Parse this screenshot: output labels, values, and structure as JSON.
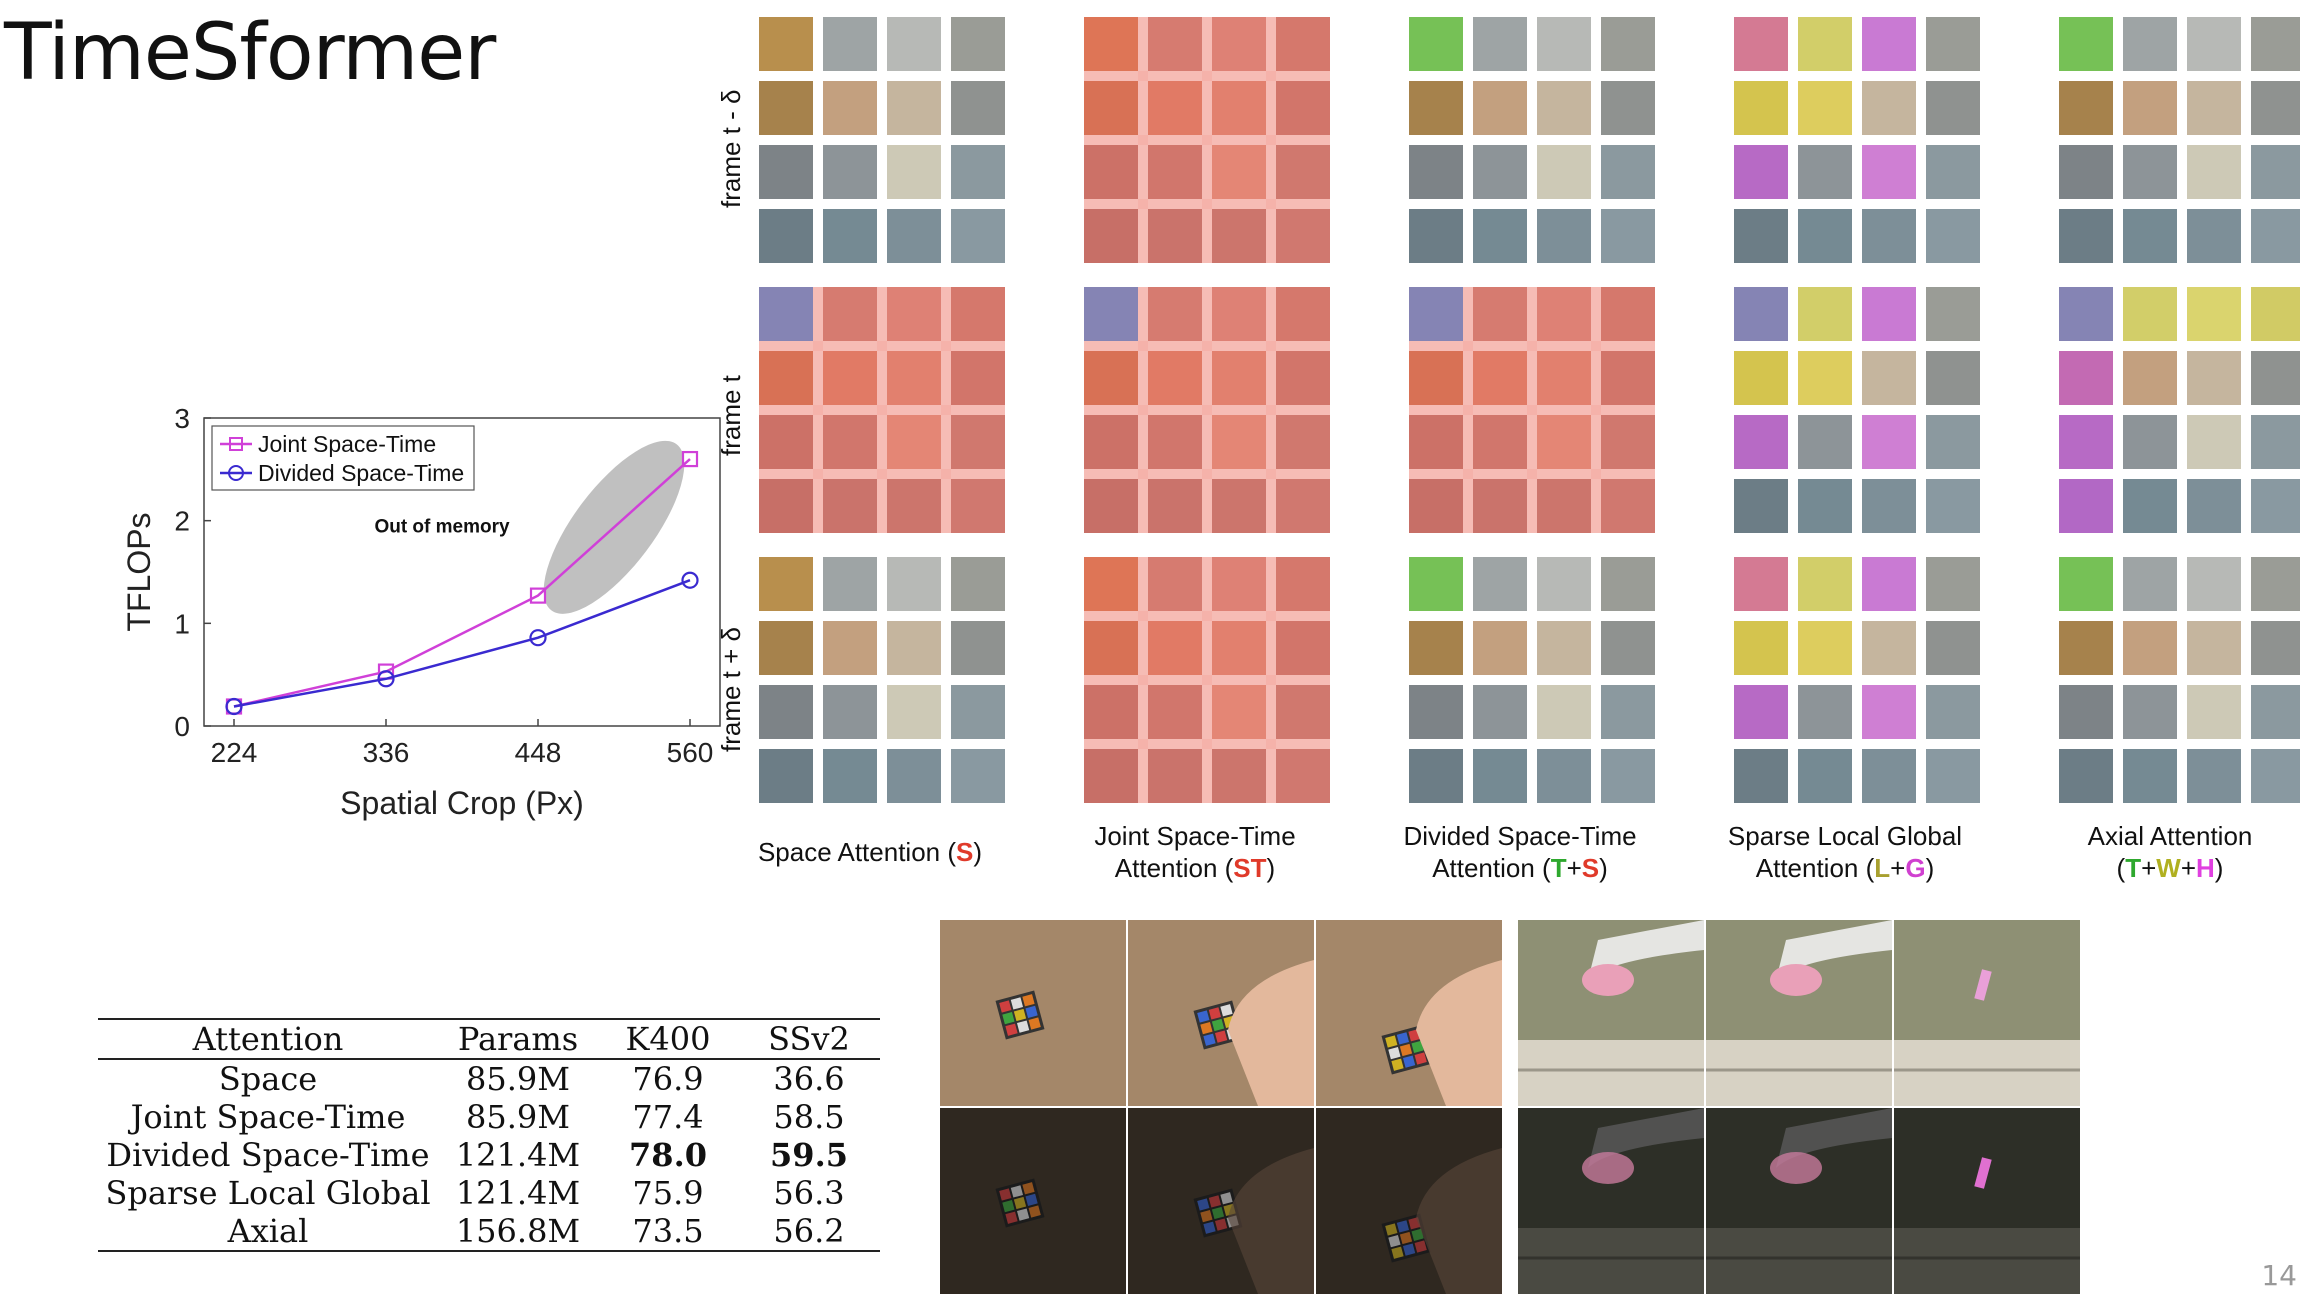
{
  "slide": {
    "title": "TimeSformer",
    "page_number": "14"
  },
  "chart_data": {
    "type": "line",
    "x": [
      224,
      336,
      448,
      560
    ],
    "xlabel": "Spatial Crop (Px)",
    "ylabel": "TFLOPs",
    "xticks": [
      "224",
      "336",
      "448",
      "560"
    ],
    "yticks": [
      "0",
      "1",
      "2",
      "3"
    ],
    "ylim": [
      0,
      3
    ],
    "xlim": [
      224,
      560
    ],
    "legend_position": "top-left",
    "annotation": "Out of memory",
    "series": [
      {
        "name": "Joint Space-Time",
        "values": [
          0.19,
          0.53,
          1.27,
          2.6
        ],
        "color": "#d040d8",
        "marker": "square"
      },
      {
        "name": "Divided Space-Time",
        "values": [
          0.19,
          0.46,
          0.86,
          1.42
        ],
        "color": "#3a2ad0",
        "marker": "circle"
      }
    ]
  },
  "attention_grid": {
    "row_labels": [
      "frame t - δ",
      "frame t",
      "frame t + δ"
    ],
    "captions": [
      {
        "line1": "",
        "line2_pre": "Space Attention (",
        "parts": [
          {
            "text": "S",
            "cls": "s"
          }
        ],
        "line2_post": ")"
      },
      {
        "line1": "Joint Space-Time",
        "line2_pre": "Attention (",
        "parts": [
          {
            "text": "ST",
            "cls": "s"
          }
        ],
        "line2_post": ")"
      },
      {
        "line1": "Divided Space-Time",
        "line2_pre": "Attention (",
        "parts": [
          {
            "text": "T",
            "cls": "t"
          },
          {
            "text": "+",
            "cls": ""
          },
          {
            "text": "S",
            "cls": "s"
          }
        ],
        "line2_post": ")"
      },
      {
        "line1": "Sparse Local Global",
        "line2_pre": "Attention (",
        "parts": [
          {
            "text": "L",
            "cls": "l"
          },
          {
            "text": "+",
            "cls": ""
          },
          {
            "text": "G",
            "cls": "g"
          }
        ],
        "line2_post": ")"
      },
      {
        "line1": "Axial Attention",
        "line2_pre": "(",
        "parts": [
          {
            "text": "T",
            "cls": "t"
          },
          {
            "text": "+",
            "cls": ""
          },
          {
            "text": "W",
            "cls": "w"
          },
          {
            "text": "+",
            "cls": ""
          },
          {
            "text": "H",
            "cls": "h"
          }
        ],
        "line2_post": ")"
      }
    ],
    "colors": {
      "query": "#6f7fe0",
      "space": "#ee6a5a",
      "time": "#5ad55a",
      "local": "#e8e050",
      "global": "#d060e0"
    }
  },
  "table": {
    "headers": [
      "Attention",
      "Params",
      "K400",
      "SSv2"
    ],
    "rows": [
      [
        "Space",
        "85.9M",
        "76.9",
        "36.6"
      ],
      [
        "Joint Space-Time",
        "85.9M",
        "77.4",
        "58.5"
      ],
      [
        "Divided Space-Time",
        "121.4M",
        "78.0",
        "59.5"
      ],
      [
        "Sparse Local Global",
        "121.4M",
        "75.9",
        "56.3"
      ],
      [
        "Axial",
        "156.8M",
        "73.5",
        "56.2"
      ]
    ],
    "best_row": 2
  }
}
